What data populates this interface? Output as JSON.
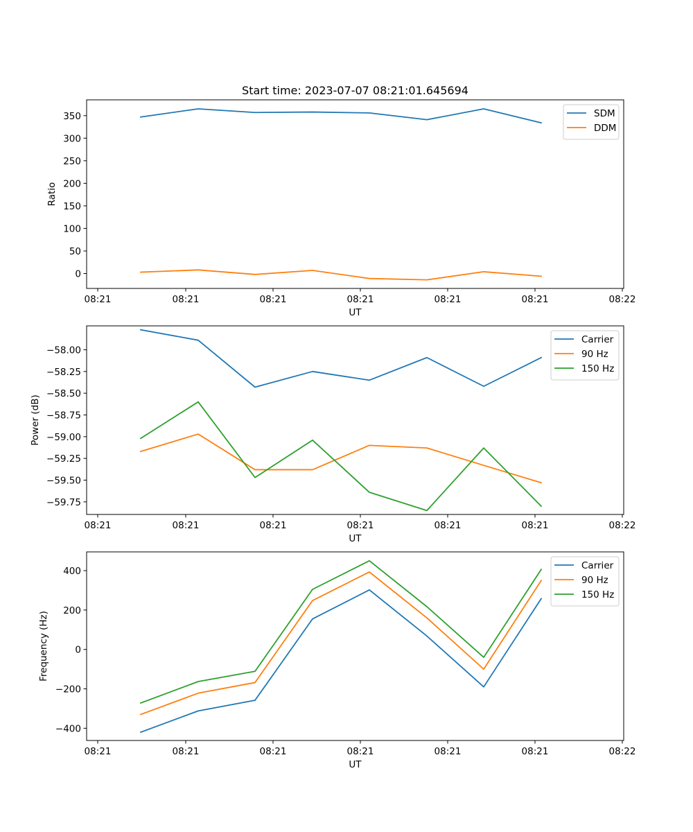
{
  "colors": {
    "blue": "#1f77b4",
    "orange": "#ff7f0e",
    "green": "#2ca02c"
  },
  "chart_data": [
    {
      "type": "line",
      "title": "Start time: 2023-07-07 08:21:01.645694",
      "xlabel": "UT",
      "ylabel": "Ratio",
      "x_tick_labels": [
        "08:21",
        "08:21",
        "08:21",
        "08:21",
        "08:21",
        "08:21",
        "08:21",
        "08:22"
      ],
      "ylim": [
        -33,
        385
      ],
      "yticks": [
        0,
        50,
        100,
        150,
        200,
        250,
        300,
        350
      ],
      "ytick_labels": [
        "0",
        "50",
        "100",
        "150",
        "200",
        "250",
        "300",
        "350"
      ],
      "legend_position": "top-right",
      "series": [
        {
          "name": "SDM",
          "color": "#1f77b4",
          "values": [
            347,
            365,
            357,
            358,
            356,
            341,
            365,
            334
          ]
        },
        {
          "name": "DDM",
          "color": "#ff7f0e",
          "values": [
            3,
            8,
            -2,
            7,
            -11,
            -14,
            4,
            -6
          ]
        }
      ]
    },
    {
      "type": "line",
      "title": "",
      "xlabel": "UT",
      "ylabel": "Power (dB)",
      "x_tick_labels": [
        "08:21",
        "08:21",
        "08:21",
        "08:21",
        "08:21",
        "08:21",
        "08:21",
        "08:22"
      ],
      "ylim": [
        -59.895,
        -57.725
      ],
      "yticks": [
        -58.0,
        -58.25,
        -58.5,
        -58.75,
        -59.0,
        -59.25,
        -59.5,
        -59.75
      ],
      "ytick_labels": [
        "−58.00",
        "−58.25",
        "−58.50",
        "−58.75",
        "−59.00",
        "−59.25",
        "−59.50",
        "−59.75"
      ],
      "legend_position": "top-right",
      "series": [
        {
          "name": "Carrier",
          "color": "#1f77b4",
          "values": [
            -57.77,
            -57.89,
            -58.43,
            -58.25,
            -58.35,
            -58.09,
            -58.42,
            -58.09
          ]
        },
        {
          "name": "90 Hz",
          "color": "#ff7f0e",
          "values": [
            -59.17,
            -58.97,
            -59.38,
            -59.38,
            -59.1,
            -59.13,
            -59.33,
            -59.53
          ]
        },
        {
          "name": "150 Hz",
          "color": "#2ca02c",
          "values": [
            -59.02,
            -58.6,
            -59.47,
            -59.04,
            -59.64,
            -59.85,
            -59.13,
            -59.8
          ]
        }
      ]
    },
    {
      "type": "line",
      "title": "",
      "xlabel": "UT",
      "ylabel": "Frequency (Hz)",
      "x_tick_labels": [
        "08:21",
        "08:21",
        "08:21",
        "08:21",
        "08:21",
        "08:21",
        "08:21",
        "08:22"
      ],
      "ylim": [
        -462,
        495
      ],
      "yticks": [
        -400,
        -200,
        0,
        200,
        400
      ],
      "ytick_labels": [
        "−400",
        "−200",
        "0",
        "200",
        "400"
      ],
      "legend_position": "top-right",
      "series": [
        {
          "name": "Carrier",
          "color": "#1f77b4",
          "values": [
            -420,
            -312,
            -258,
            155,
            302,
            68,
            -190,
            258
          ]
        },
        {
          "name": "90 Hz",
          "color": "#ff7f0e",
          "values": [
            -330,
            -222,
            -168,
            248,
            393,
            160,
            -100,
            350
          ]
        },
        {
          "name": "150 Hz",
          "color": "#2ca02c",
          "values": [
            -272,
            -163,
            -111,
            305,
            450,
            217,
            -40,
            406
          ]
        }
      ]
    }
  ]
}
